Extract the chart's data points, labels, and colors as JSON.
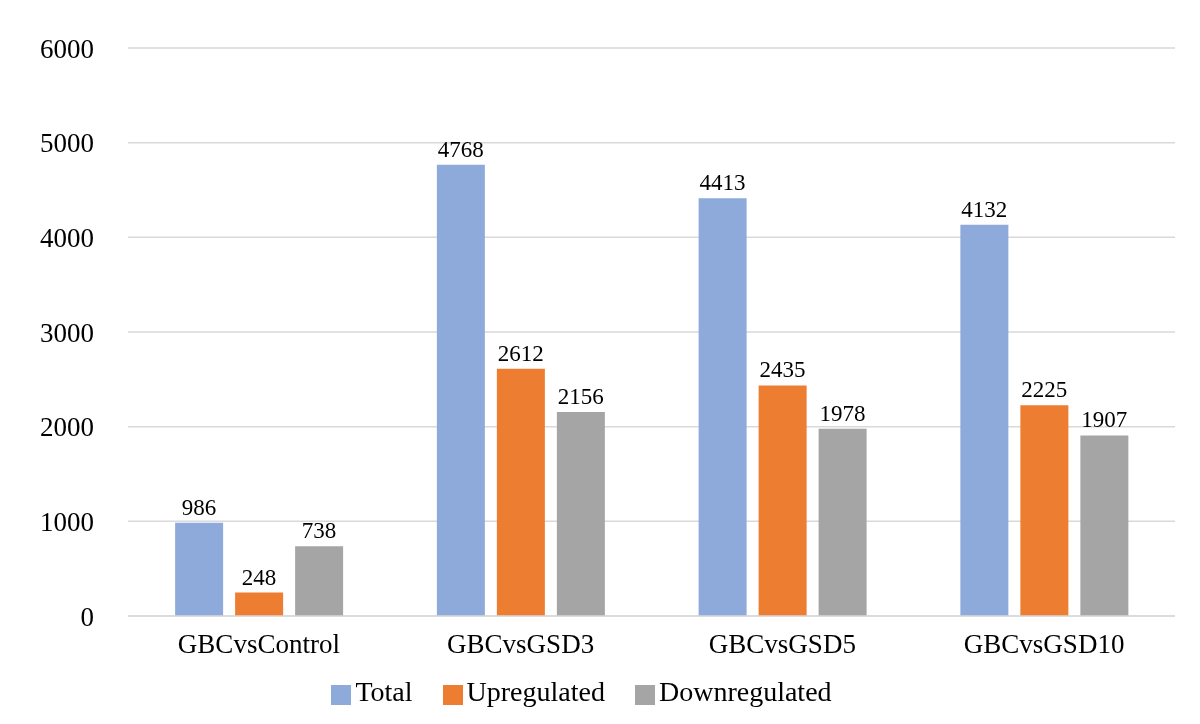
{
  "chart_data": {
    "type": "bar",
    "categories": [
      "GBCvsControl",
      "GBCvsGSD3",
      "GBCvsGSD5",
      "GBCvsGSD10"
    ],
    "series": [
      {
        "name": "Total",
        "color": "#8eaadb",
        "values": [
          986,
          4768,
          4413,
          4132
        ]
      },
      {
        "name": "Upregulated",
        "color": "#ed7d31",
        "values": [
          248,
          2612,
          2435,
          2225
        ]
      },
      {
        "name": "Downregulated",
        "color": "#a5a5a5",
        "values": [
          738,
          2156,
          1978,
          1907
        ]
      }
    ],
    "ylim": [
      0,
      6000
    ],
    "yticks": [
      0,
      1000,
      2000,
      3000,
      4000,
      5000,
      6000
    ],
    "grid": "y",
    "legend": "bottom",
    "data_labels": true
  }
}
